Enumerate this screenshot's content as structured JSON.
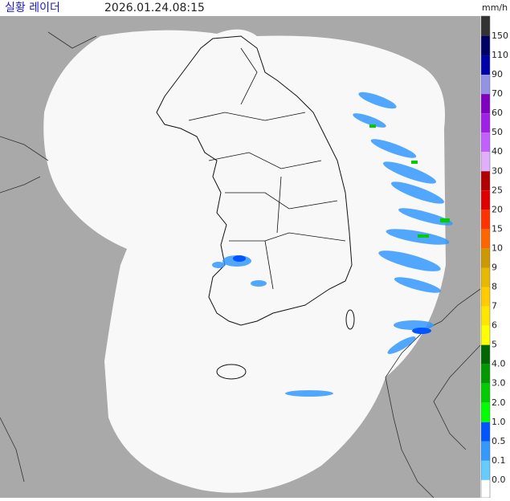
{
  "header": {
    "title": "실황 레이더",
    "timestamp": "2026.01.24.08:15",
    "unit": "mm/h"
  },
  "legend": {
    "top_color": "#333333",
    "items": [
      {
        "label": "150",
        "color": "#000066"
      },
      {
        "label": "110",
        "color": "#0000a8"
      },
      {
        "label": "90",
        "color": "#9393e6"
      },
      {
        "label": "70",
        "color": "#8000c0"
      },
      {
        "label": "60",
        "color": "#a020e8"
      },
      {
        "label": "50",
        "color": "#c060ff"
      },
      {
        "label": "40",
        "color": "#e0b0ff"
      },
      {
        "label": "30",
        "color": "#b00000"
      },
      {
        "label": "25",
        "color": "#e00000"
      },
      {
        "label": "20",
        "color": "#ff3300"
      },
      {
        "label": "15",
        "color": "#ff6600"
      },
      {
        "label": "10",
        "color": "#cc9900"
      },
      {
        "label": "9",
        "color": "#e6b800"
      },
      {
        "label": "8",
        "color": "#ffcc00"
      },
      {
        "label": "7",
        "color": "#ffe600"
      },
      {
        "label": "6",
        "color": "#ffff00"
      },
      {
        "label": "5",
        "color": "#006600"
      },
      {
        "label": "4.0",
        "color": "#009900"
      },
      {
        "label": "3.0",
        "color": "#00cc00"
      },
      {
        "label": "2.0",
        "color": "#00ff00"
      },
      {
        "label": "1.0",
        "color": "#0055ff"
      },
      {
        "label": "0.5",
        "color": "#3399ff"
      },
      {
        "label": "0.1",
        "color": "#66ccff"
      },
      {
        "label": "0.0",
        "color": "#ffffff"
      }
    ]
  }
}
